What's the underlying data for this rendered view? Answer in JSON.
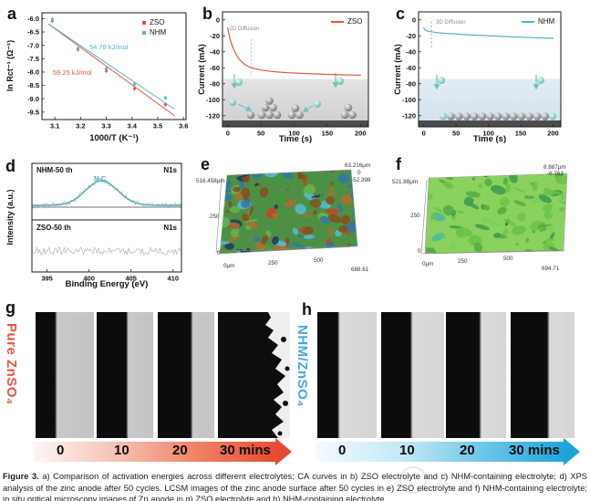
{
  "panel_a": {
    "label": "a",
    "xlabel": "1000/T (K⁻¹)",
    "ylabel": "ln Rct⁻¹ (Ω⁻¹)",
    "legend": [
      {
        "label": "ZSO",
        "color": "#e0583a"
      },
      {
        "label": "NHM",
        "color": "#58b0d0"
      }
    ],
    "annotation_nhm": "54.78 kJ/mol",
    "annotation_zso": "59.25 kJ/mol",
    "annotation_nhm_color": "#58b0d0",
    "annotation_zso_color": "#e0583a"
  },
  "panel_b": {
    "label": "b",
    "xlabel": "Time (s)",
    "ylabel": "Current (mA)",
    "legend": "ZSO",
    "legend_color": "#e0583a",
    "annotation": "2D Diffusion"
  },
  "panel_c": {
    "label": "c",
    "xlabel": "Time (s)",
    "ylabel": "Current (mA)",
    "legend": "NHM",
    "legend_color": "#4fb0c4",
    "annotation": "3D Diffusion"
  },
  "panel_d": {
    "label": "d",
    "xlabel": "Binding Energy (eV)",
    "ylabel": "Intensity (a.u.)",
    "top": {
      "sample": "NHM-50 th",
      "region": "N1s",
      "peak": "N-C"
    },
    "bottom": {
      "sample": "ZSO-50 th",
      "region": "N1s"
    }
  },
  "panel_e": {
    "label": "e",
    "y_max": "516.458μm",
    "y_mid": "250",
    "y_min": "0",
    "x_min": "0μm",
    "x_mid": "250",
    "x_mid2": "500",
    "x_max": "688.61",
    "z_top": "63.216μm",
    "z_mid": "0",
    "z_bot": "-52.398"
  },
  "panel_f": {
    "label": "f",
    "y_max": "521.88μm",
    "y_mid": "250",
    "y_min": "0",
    "x_min": "0μm",
    "x_mid": "250",
    "x_mid2": "500",
    "x_max": "694.71",
    "z_top": "8.887μm",
    "z_bot": "-6.763"
  },
  "panel_g": {
    "label": "g",
    "side_label": "Pure ZnSO₄",
    "side_color": "#e8563e",
    "times": [
      "0",
      "10",
      "20",
      "30 mins"
    ]
  },
  "panel_h": {
    "label": "h",
    "side_label": "NHM/ZnSO₄",
    "side_color": "#3fa9dc",
    "times": [
      "0",
      "10",
      "20",
      "30 mins"
    ]
  },
  "caption": {
    "title": "Figure 3.",
    "body": "a) Comparison of activation energies across different electrolytes; CA curves in b) ZSO electrolyte and c) NHM-containing electrolyte; d) XPS analysis of the zinc anode after 50 cycles. LCSM images of the zinc anode surface after 50 cycles in e) ZSO electrolyte and f) NHM-containing electrolyte; in situ optical microscopy images of Zn anode in g) ZSO electrolyte and h) NHM-containing electrolyte."
  },
  "watermark": {
    "text": "公众号"
  },
  "chart_data": [
    {
      "id": "a",
      "type": "scatter",
      "xlabel": "1000/T (K⁻¹)",
      "ylabel": "ln Rct⁻¹ (Ω⁻¹)",
      "xlim": [
        3.05,
        3.61
      ],
      "ylim": [
        -9.78,
        -5.78
      ],
      "xticks": [
        3.1,
        3.2,
        3.3,
        3.4,
        3.5,
        3.6
      ],
      "yticks": [
        -6.0,
        -6.5,
        -7.0,
        -7.5,
        -8.0,
        -8.5,
        -9.0,
        -9.5
      ],
      "legend_position": "top-right",
      "grid": false,
      "series": [
        {
          "name": "ZSO",
          "color": "#e0583a",
          "fit_label": "59.25 kJ/mol",
          "points": [
            [
              3.09,
              -6.08
            ],
            [
              3.19,
              -7.15
            ],
            [
              3.3,
              -7.95
            ],
            [
              3.41,
              -8.62
            ],
            [
              3.53,
              -9.22
            ]
          ]
        },
        {
          "name": "NHM",
          "color": "#58b0d0",
          "fit_label": "54.78 kJ/mol",
          "points": [
            [
              3.09,
              -6.03
            ],
            [
              3.19,
              -7.12
            ],
            [
              3.3,
              -7.88
            ],
            [
              3.41,
              -8.45
            ],
            [
              3.53,
              -8.97
            ]
          ]
        }
      ]
    },
    {
      "id": "b",
      "type": "line",
      "xlabel": "Time (s)",
      "ylabel": "Current (mA)",
      "xlim": [
        -8,
        212
      ],
      "ylim": [
        -134,
        10
      ],
      "xticks": [
        0,
        50,
        100,
        150,
        200
      ],
      "yticks": [
        0,
        -20,
        -40,
        -60,
        -80,
        -100,
        -120
      ],
      "legend_position": "top-right",
      "grid": false,
      "series": [
        {
          "name": "ZSO",
          "color": "#e0583a",
          "points": [
            [
              0,
              -10
            ],
            [
              1,
              -15
            ],
            [
              2,
              -19
            ],
            [
              4,
              -26
            ],
            [
              6,
              -31
            ],
            [
              8,
              -35
            ],
            [
              10,
              -39
            ],
            [
              13,
              -44
            ],
            [
              16,
              -48
            ],
            [
              20,
              -52
            ],
            [
              25,
              -55.5
            ],
            [
              30,
              -58
            ],
            [
              35,
              -59.8
            ],
            [
              40,
              -61
            ],
            [
              50,
              -62.8
            ],
            [
              60,
              -64
            ],
            [
              75,
              -65.3
            ],
            [
              90,
              -66.2
            ],
            [
              110,
              -67
            ],
            [
              130,
              -67.7
            ],
            [
              155,
              -68.4
            ],
            [
              175,
              -68.9
            ],
            [
              200,
              -69.3
            ]
          ]
        }
      ],
      "annotation": {
        "text": "2D Diffusion",
        "x": 35,
        "dash_y": [
          -24,
          -71
        ]
      },
      "shade_from": -74
    },
    {
      "id": "c",
      "type": "line",
      "xlabel": "Time (s)",
      "ylabel": "Current (mA)",
      "xlim": [
        -8,
        212
      ],
      "ylim": [
        -134,
        10
      ],
      "xticks": [
        0,
        50,
        100,
        150,
        200
      ],
      "yticks": [
        0,
        -20,
        -40,
        -60,
        -80,
        -100,
        -120
      ],
      "legend_position": "top-right",
      "grid": false,
      "series": [
        {
          "name": "NHM",
          "color": "#4fb0c4",
          "points": [
            [
              0,
              -10
            ],
            [
              1,
              -12
            ],
            [
              3,
              -13.2
            ],
            [
              6,
              -14
            ],
            [
              10,
              -14.8
            ],
            [
              15,
              -15.4
            ],
            [
              22,
              -16
            ],
            [
              30,
              -16.6
            ],
            [
              40,
              -17.2
            ],
            [
              55,
              -18
            ],
            [
              70,
              -18.7
            ],
            [
              90,
              -19.5
            ],
            [
              110,
              -20.3
            ],
            [
              130,
              -21
            ],
            [
              150,
              -21.7
            ],
            [
              170,
              -22.3
            ],
            [
              185,
              -22.8
            ],
            [
              200,
              -23.2
            ]
          ]
        }
      ],
      "annotation": {
        "text": "3D Diffusion",
        "x": 12,
        "dash_y": [
          -2,
          -37
        ]
      },
      "shade_from": -74
    },
    {
      "id": "d",
      "type": "line",
      "xlabel": "Binding Energy (eV)",
      "ylabel": "Intensity (a.u.)",
      "xlim": [
        393.2,
        411
      ],
      "xticks": [
        395,
        400,
        405,
        410
      ],
      "grid": false,
      "panels": [
        {
          "sample": "NHM-50 th",
          "region": "N1s",
          "peak": {
            "label": "N-C",
            "center": 401.5,
            "sigma": 1.9,
            "color": "#4aacbc"
          }
        },
        {
          "sample": "ZSO-50 th",
          "region": "N1s",
          "peak": null
        }
      ]
    }
  ]
}
